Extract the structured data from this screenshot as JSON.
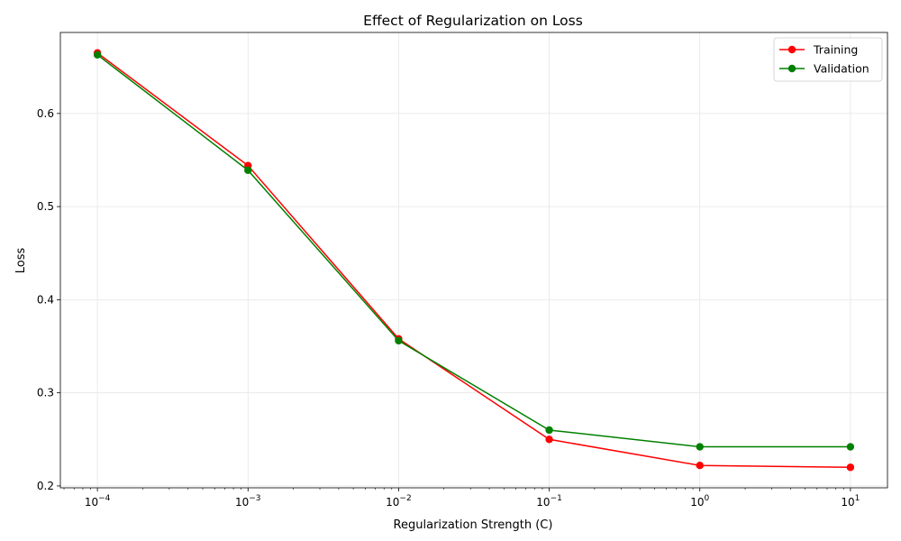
{
  "chart_data": {
    "type": "line",
    "title": "Effect of Regularization on Loss",
    "xlabel": "Regularization Strength (C)",
    "ylabel": "Loss",
    "xscale": "log",
    "x": [
      0.0001,
      0.001,
      0.01,
      0.1,
      1,
      10
    ],
    "x_tick_labels": [
      {
        "base": "10",
        "exp": "−4"
      },
      {
        "base": "10",
        "exp": "−3"
      },
      {
        "base": "10",
        "exp": "−2"
      },
      {
        "base": "10",
        "exp": "−1"
      },
      {
        "base": "10",
        "exp": "0"
      },
      {
        "base": "10",
        "exp": "1"
      }
    ],
    "y_ticks": [
      "0.2",
      "0.3",
      "0.4",
      "0.5",
      "0.6"
    ],
    "ylim": [
      0.198,
      0.687
    ],
    "grid": true,
    "legend_position": "top-right",
    "series": [
      {
        "name": "Training",
        "color": "#ff0000",
        "values": [
          0.665,
          0.544,
          0.358,
          0.25,
          0.222,
          0.22
        ]
      },
      {
        "name": "Validation",
        "color": "#008000",
        "values": [
          0.663,
          0.539,
          0.356,
          0.26,
          0.242,
          0.242
        ]
      }
    ]
  }
}
